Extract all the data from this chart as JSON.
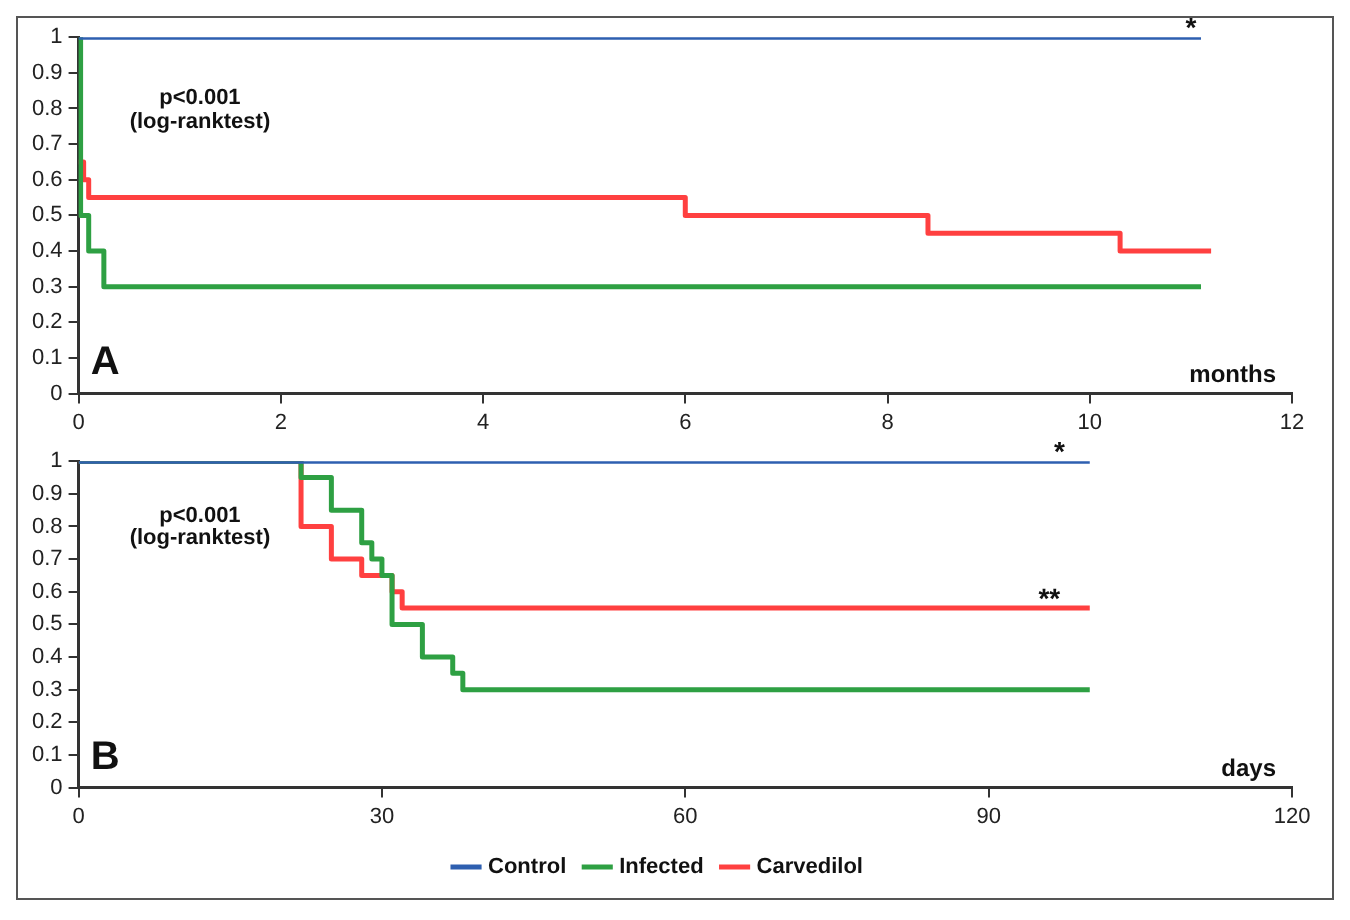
{
  "chart_data": [
    {
      "type": "step",
      "xlabel": "months",
      "xlim": [
        0,
        12
      ],
      "xticks": [
        0,
        2,
        4,
        6,
        8,
        10,
        12
      ],
      "ylim": [
        0,
        1
      ],
      "yticks": [
        0,
        0.1,
        0.2,
        0.3,
        0.4,
        0.5,
        0.6,
        0.7,
        0.8,
        0.9,
        1
      ],
      "grid": false,
      "legend": false,
      "series": [
        {
          "color": "#2e5fb0",
          "x": [
            0,
            11.1
          ],
          "values": [
            1,
            1
          ]
        },
        {
          "color": "#2ea043",
          "x": [
            0,
            0.02,
            0.1,
            0.25,
            11.1
          ],
          "values": [
            1,
            0.5,
            0.4,
            0.3,
            0.3
          ]
        },
        {
          "color": "#ff4040",
          "x": [
            0,
            0.05,
            0.1,
            6.0,
            8.4,
            10.3,
            11.2
          ],
          "values": [
            0.65,
            0.6,
            0.55,
            0.5,
            0.45,
            0.4,
            0.4
          ]
        }
      ],
      "annotations": [
        "A",
        "p<0.001",
        "(log-ranktest)",
        {
          "text": "*",
          "x": 11.0,
          "y": 1
        }
      ]
    },
    {
      "type": "step",
      "xlabel": "days",
      "xlim": [
        0,
        120
      ],
      "xticks": [
        0,
        30,
        60,
        90,
        120
      ],
      "ylim": [
        0,
        1
      ],
      "yticks": [
        0,
        0.1,
        0.2,
        0.3,
        0.4,
        0.5,
        0.6,
        0.7,
        0.8,
        0.9,
        1
      ],
      "grid": false,
      "legend": "bottom",
      "series": [
        {
          "name": "Control",
          "color": "#2e5fb0",
          "x": [
            0,
            100
          ],
          "values": [
            1,
            1
          ]
        },
        {
          "name": "Infected",
          "color": "#2ea043",
          "x": [
            0,
            22,
            25,
            28,
            29,
            30,
            31,
            34,
            37,
            38,
            100
          ],
          "values": [
            1,
            0.95,
            0.85,
            0.75,
            0.7,
            0.65,
            0.5,
            0.4,
            0.35,
            0.3,
            0.3
          ]
        },
        {
          "name": "Carvedilol",
          "color": "#ff4040",
          "x": [
            0,
            22,
            25,
            28,
            31,
            32,
            100
          ],
          "values": [
            1,
            0.8,
            0.7,
            0.65,
            0.6,
            0.55,
            0.55
          ]
        }
      ],
      "annotations": [
        "B",
        "p<0.001",
        "(log-ranktest)",
        {
          "text": "*",
          "x": 97,
          "y": 1
        },
        {
          "text": "**",
          "x": 96,
          "y": 0.55
        }
      ]
    }
  ]
}
